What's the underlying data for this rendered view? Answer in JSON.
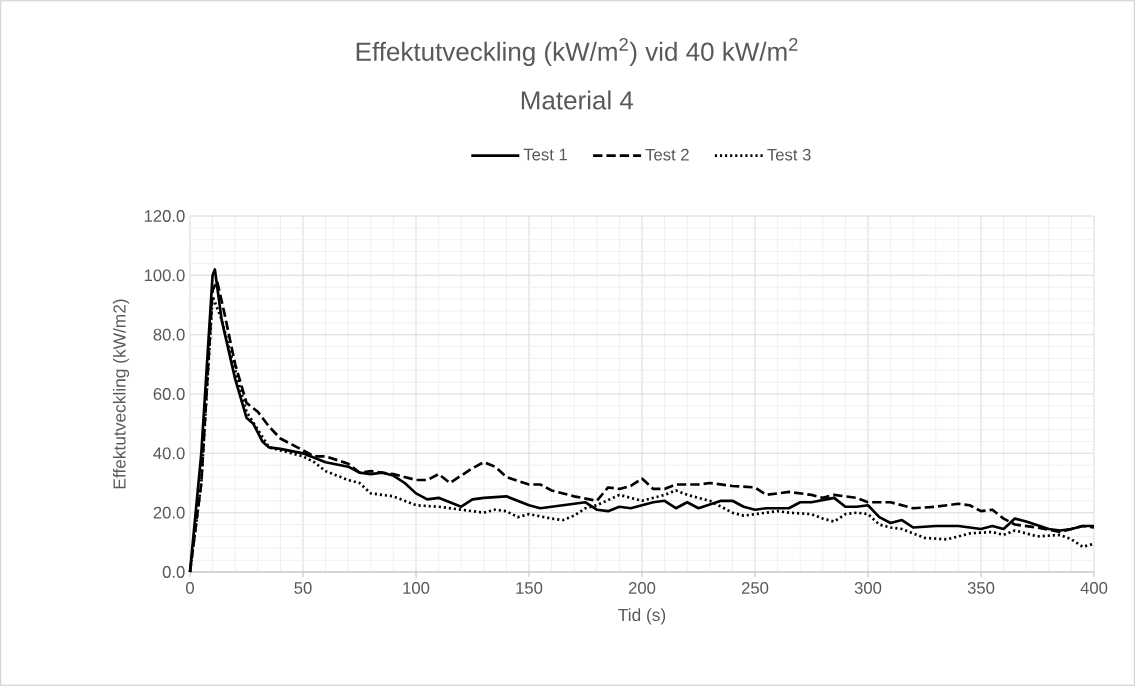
{
  "chart_data": {
    "type": "line",
    "title": "Effektutveckling (kW/m$^{2}$) vid 40 kW/m$^{2}$",
    "subtitle": "Material 4",
    "xlabel": "Tid (s)",
    "ylabel": "Effektutveckling (kW/m2)",
    "xlim": [
      0,
      400
    ],
    "xticks": [
      0,
      50,
      100,
      150,
      200,
      250,
      300,
      350,
      400
    ],
    "ylim": [
      0,
      120
    ],
    "yticks": [
      {
        "value": 0,
        "label": "0.0"
      },
      {
        "value": 20,
        "label": "20.0"
      },
      {
        "value": 40,
        "label": "40.0"
      },
      {
        "value": 60,
        "label": "60.0"
      },
      {
        "value": 80,
        "label": "80.0"
      },
      {
        "value": 100,
        "label": "100.0"
      },
      {
        "value": 120,
        "label": "120.0"
      }
    ],
    "grid": true,
    "legend": "top",
    "series": [
      {
        "name": "Test 1",
        "color": "#000000",
        "line_style": "solid",
        "x": [
          0,
          5,
          10,
          11,
          14,
          20,
          25,
          28,
          32,
          35,
          40,
          50,
          60,
          70,
          75,
          80,
          85,
          90,
          95,
          100,
          105,
          110,
          115,
          120,
          125,
          130,
          140,
          150,
          155,
          165,
          175,
          180,
          185,
          190,
          195,
          205,
          210,
          215,
          220,
          225,
          235,
          240,
          245,
          250,
          255,
          265,
          270,
          275,
          285,
          290,
          295,
          300,
          305,
          310,
          315,
          320,
          330,
          340,
          350,
          355,
          360,
          365,
          370,
          380,
          385,
          390,
          395,
          400
        ],
        "values": [
          0,
          40,
          100,
          102,
          85,
          65,
          52,
          50,
          44,
          42,
          41.5,
          40,
          37,
          35.5,
          33.5,
          33,
          33.5,
          32.5,
          30,
          26.5,
          24.5,
          25,
          23.5,
          22,
          24.5,
          25,
          25.5,
          22.5,
          21.5,
          22.5,
          23.5,
          21,
          20.5,
          22,
          21.5,
          23.5,
          24,
          21.5,
          23.5,
          21.5,
          24,
          24,
          22,
          21,
          21.5,
          21.5,
          23.5,
          23.5,
          25,
          22,
          22,
          22.5,
          18.5,
          16.5,
          17.5,
          15,
          15.5,
          15.5,
          14.5,
          15.5,
          14.5,
          18,
          17,
          14.5,
          14,
          14.5,
          15.5,
          15.5
        ]
      },
      {
        "name": "Test 2",
        "color": "#000000",
        "line_style": "dashed",
        "x": [
          0,
          5,
          10,
          12,
          15,
          20,
          25,
          30,
          35,
          40,
          45,
          50,
          55,
          60,
          70,
          75,
          80,
          90,
          100,
          105,
          110,
          115,
          120,
          125,
          130,
          135,
          140,
          150,
          155,
          160,
          170,
          180,
          185,
          190,
          195,
          200,
          205,
          210,
          215,
          225,
          230,
          240,
          250,
          255,
          265,
          275,
          280,
          285,
          290,
          295,
          300,
          310,
          320,
          330,
          340,
          345,
          350,
          355,
          360,
          365,
          375,
          385,
          395,
          400
        ],
        "values": [
          0,
          30,
          95,
          98,
          88,
          70,
          57,
          54,
          49,
          45,
          43,
          41,
          39,
          39,
          36.5,
          33.5,
          34,
          33,
          31,
          31,
          33,
          30,
          32.5,
          35,
          37,
          35.5,
          32,
          29.5,
          29.5,
          27.5,
          25.5,
          24,
          28.5,
          28,
          29,
          31.5,
          28,
          28,
          29.5,
          29.5,
          30,
          29,
          28.5,
          26,
          27,
          26,
          25,
          26,
          25.5,
          25,
          23.5,
          23.5,
          21.5,
          22,
          23,
          22.5,
          20.5,
          21,
          18,
          16,
          15,
          13.5,
          15.5,
          15
        ]
      },
      {
        "name": "Test 3",
        "color": "#000000",
        "line_style": "dotted",
        "x": [
          0,
          5,
          10,
          14,
          20,
          25,
          30,
          35,
          40,
          50,
          55,
          60,
          70,
          75,
          80,
          90,
          95,
          100,
          110,
          120,
          130,
          135,
          140,
          145,
          150,
          160,
          165,
          170,
          175,
          180,
          190,
          195,
          200,
          210,
          215,
          220,
          230,
          235,
          240,
          245,
          255,
          260,
          265,
          275,
          280,
          285,
          290,
          295,
          300,
          305,
          310,
          315,
          320,
          325,
          335,
          340,
          345,
          355,
          360,
          365,
          370,
          375,
          385,
          390,
          395,
          400
        ],
        "values": [
          0,
          30,
          93,
          85,
          68,
          54,
          48,
          42,
          41,
          39,
          37,
          34,
          31,
          30,
          26.5,
          25.5,
          24,
          22.5,
          22,
          21,
          20,
          21,
          20.5,
          18.5,
          19.5,
          18,
          17.5,
          19,
          21.5,
          22.5,
          26,
          25,
          24,
          26,
          27.5,
          26,
          24,
          22,
          20,
          19,
          20,
          20.5,
          20,
          19.5,
          18,
          17,
          19.5,
          20,
          19.5,
          16,
          15,
          14.5,
          13,
          11.5,
          11,
          12,
          13,
          13.5,
          12.5,
          14,
          13,
          12,
          12.5,
          11,
          8.5,
          9.5
        ]
      }
    ]
  }
}
